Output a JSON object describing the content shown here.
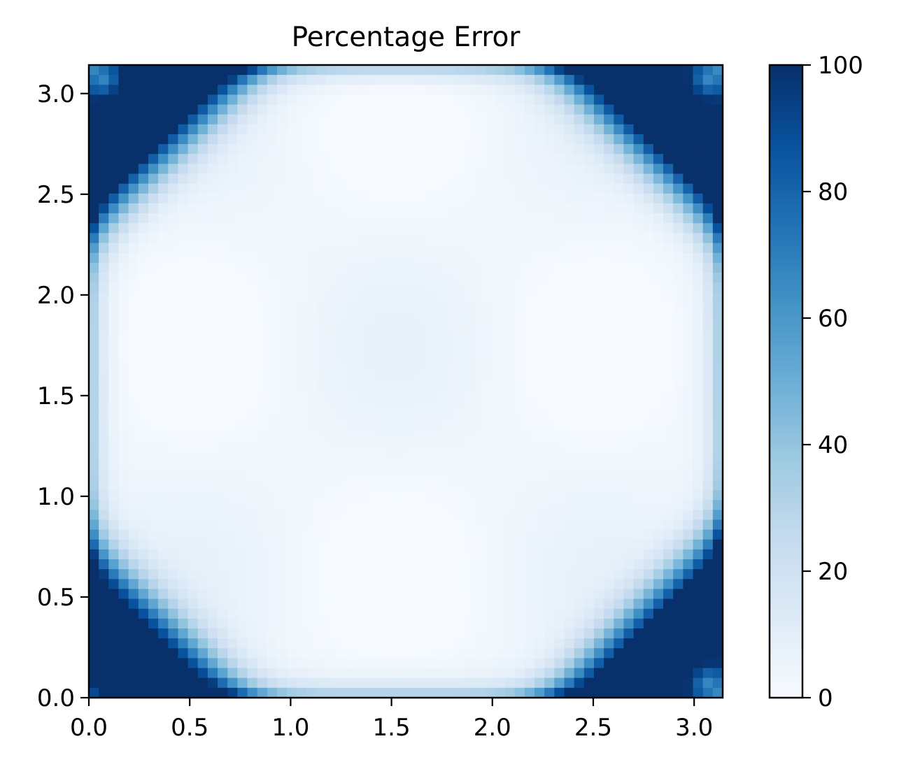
{
  "chart_data": {
    "type": "heatmap",
    "title": "Percentage Error",
    "xlabel": "",
    "ylabel": "",
    "xlim": [
      0,
      3.14159
    ],
    "ylim": [
      0,
      3.14159
    ],
    "x_ticks": [
      0.0,
      0.5,
      1.0,
      1.5,
      2.0,
      2.5,
      3.0
    ],
    "x_tick_labels": [
      "0.0",
      "0.5",
      "1.0",
      "1.5",
      "2.0",
      "2.5",
      "3.0"
    ],
    "y_ticks": [
      0.0,
      0.5,
      1.0,
      1.5,
      2.0,
      2.5,
      3.0
    ],
    "y_tick_labels": [
      "0.0",
      "0.5",
      "1.0",
      "1.5",
      "2.0",
      "2.5",
      "3.0"
    ],
    "colormap": "Blues",
    "colormap_stops": [
      "#f7fbff",
      "#deebf7",
      "#c6dbef",
      "#9ecae1",
      "#6baed6",
      "#4292c6",
      "#2171b5",
      "#08519c",
      "#08306b"
    ],
    "clim": [
      0,
      100
    ],
    "colorbar": {
      "ticks": [
        0,
        20,
        40,
        60,
        80,
        100
      ],
      "tick_labels": [
        "0",
        "20",
        "40",
        "60",
        "80",
        "100"
      ]
    },
    "grid": false,
    "features": {
      "corner_error_bands": [
        {
          "corner": "top-left",
          "from": [
            0.0,
            2.35
          ],
          "to": [
            0.85,
            3.14
          ]
        },
        {
          "corner": "top-right",
          "from": [
            2.0,
            3.14
          ],
          "to": [
            3.14,
            2.25
          ]
        },
        {
          "corner": "bottom-left",
          "from": [
            0.0,
            0.9
          ],
          "to": [
            0.85,
            0.0
          ]
        },
        {
          "corner": "bottom-right",
          "from": [
            2.3,
            0.0
          ],
          "to": [
            3.14,
            0.85
          ]
        }
      ],
      "center_error_percent": 3
    }
  }
}
